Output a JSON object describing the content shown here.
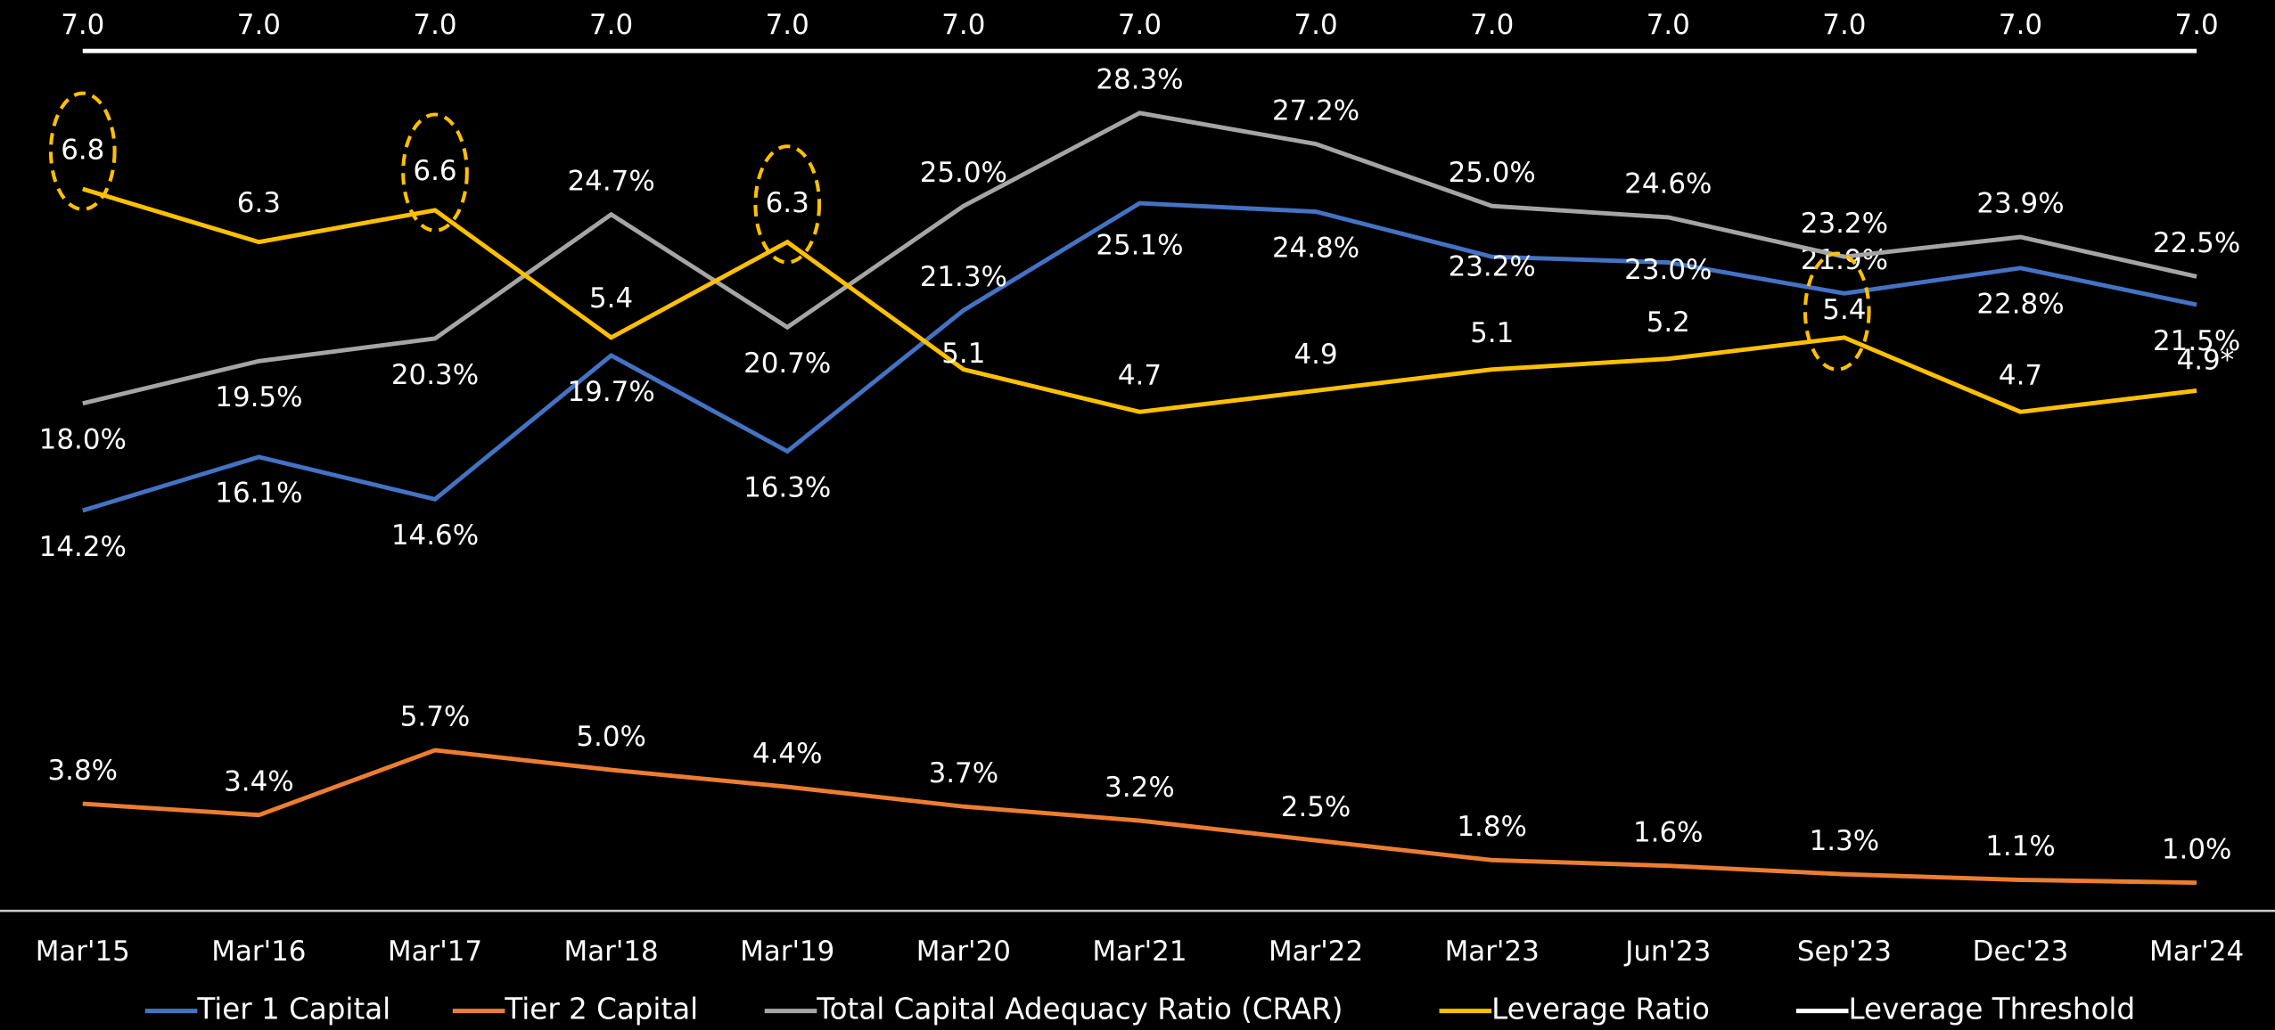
{
  "chart_data": {
    "type": "line",
    "categories": [
      "Mar'15",
      "Mar'16",
      "Mar'17",
      "Mar'18",
      "Mar'19",
      "Mar'20",
      "Mar'21",
      "Mar'22",
      "Mar'23",
      "Jun'23",
      "Sep'23",
      "Dec'23",
      "Mar'24"
    ],
    "ylim": [
      0,
      30.5
    ],
    "y2lim": [
      0,
      8.1
    ],
    "y3lim": [
      0,
      7
    ],
    "series": [
      {
        "name": "Tier 1 Capital",
        "color": "#4472c4",
        "values": [
          14.2,
          16.1,
          14.6,
          19.7,
          16.3,
          21.3,
          25.1,
          24.8,
          23.2,
          23.0,
          21.9,
          22.8,
          21.5
        ],
        "value_labels": [
          "14.2%",
          "16.1%",
          "14.6%",
          "19.7%",
          "16.3%",
          "21.3%",
          "25.1%",
          "24.8%",
          "23.2%",
          "23.0%",
          "21.9%",
          "22.8%",
          "21.5%"
        ]
      },
      {
        "name": "Tier 2 Capital",
        "color": "#ed7d31",
        "values": [
          3.8,
          3.4,
          5.7,
          5.0,
          4.4,
          3.7,
          3.2,
          2.5,
          1.8,
          1.6,
          1.3,
          1.1,
          1.0
        ],
        "value_labels": [
          "3.8%",
          "3.4%",
          "5.7%",
          "5.0%",
          "4.4%",
          "3.7%",
          "3.2%",
          "2.5%",
          "1.8%",
          "1.6%",
          "1.3%",
          "1.1%",
          "1.0%"
        ]
      },
      {
        "name": "Total Capital Adequacy Ratio (CRAR)",
        "color": "#a5a5a5",
        "values": [
          18.0,
          19.5,
          20.3,
          24.7,
          20.7,
          25.0,
          28.3,
          27.2,
          25.0,
          24.6,
          23.2,
          23.9,
          22.5
        ],
        "value_labels": [
          "18.0%",
          "19.5%",
          "20.3%",
          "24.7%",
          "20.7%",
          "25.0%",
          "28.3%",
          "27.2%",
          "25.0%",
          "24.6%",
          "23.2%",
          "23.9%",
          "22.5%"
        ]
      },
      {
        "name": "Leverage Ratio",
        "color": "#ffc000",
        "axis": "y2",
        "values": [
          6.8,
          6.3,
          6.6,
          5.4,
          6.3,
          5.1,
          4.7,
          4.9,
          5.1,
          5.2,
          5.4,
          4.7,
          4.9
        ],
        "value_labels": [
          "6.8",
          "6.3",
          "6.6",
          "5.4",
          "6.3",
          "5.1",
          "4.7",
          "4.9",
          "5.1",
          "5.2",
          "5.4",
          "4.7",
          "4.9*"
        ]
      },
      {
        "name": "Leverage Threshold",
        "color": "#ffffff",
        "axis": "y3",
        "values": [
          7,
          7,
          7,
          7,
          7,
          7,
          7,
          7,
          7,
          7,
          7,
          7,
          7
        ],
        "value_labels": [
          "7.0",
          "7.0",
          "7.0",
          "7.0",
          "7.0",
          "7.0",
          "7.0",
          "7.0",
          "7.0",
          "7.0",
          "7.0",
          "7.0",
          "7.0"
        ]
      }
    ]
  }
}
